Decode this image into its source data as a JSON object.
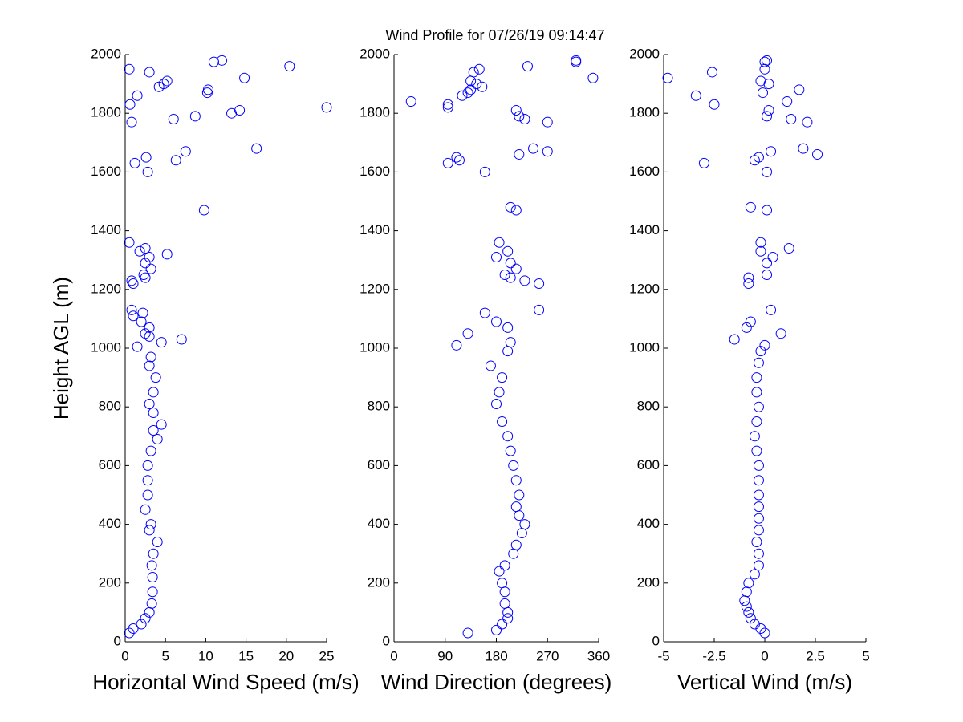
{
  "chart_data": [
    {
      "type": "scatter",
      "title": "Wind Profile for  07/26/19 09:14:47",
      "xlabel": "Horizontal Wind Speed (m/s)",
      "ylabel": "Height AGL (m)",
      "color": "#0000ff",
      "xlim": [
        0,
        25
      ],
      "xticks": [
        0,
        5,
        10,
        15,
        20,
        25
      ],
      "ylim": [
        0,
        2000
      ],
      "yticks": [
        0,
        200,
        400,
        600,
        800,
        1000,
        1200,
        1400,
        1600,
        1800,
        2000
      ],
      "x": [
        0.5,
        1,
        2,
        2.5,
        3,
        3.3,
        3.4,
        3.4,
        3.3,
        3.5,
        4,
        3,
        3.2,
        2.5,
        2.8,
        2.8,
        2.8,
        3.2,
        4,
        3.5,
        4.5,
        3.5,
        3,
        3.5,
        3.8,
        3,
        3.2,
        1.5,
        4.5,
        7,
        3,
        2.5,
        3,
        2,
        1,
        2.2,
        0.8,
        1,
        0.8,
        2.5,
        2.3,
        3.2,
        2.5,
        3,
        5.2,
        1.8,
        2.5,
        0.5,
        9.8,
        2.8,
        1.2,
        6.3,
        2.6,
        7.5,
        16.3,
        0.8,
        6,
        8.7,
        13.2,
        14.2,
        25,
        0.6,
        1.5,
        10.2,
        10.3,
        4.2,
        4.8,
        5.2,
        14.8,
        3,
        0.5,
        20.4,
        11,
        12
      ],
      "values": [
        30,
        45,
        60,
        80,
        100,
        130,
        170,
        220,
        260,
        300,
        340,
        380,
        400,
        450,
        500,
        550,
        600,
        650,
        690,
        720,
        740,
        780,
        810,
        850,
        900,
        940,
        970,
        1005,
        1020,
        1030,
        1040,
        1050,
        1070,
        1090,
        1110,
        1120,
        1130,
        1220,
        1230,
        1240,
        1250,
        1270,
        1290,
        1310,
        1320,
        1330,
        1340,
        1360,
        1470,
        1600,
        1630,
        1640,
        1650,
        1670,
        1680,
        1770,
        1780,
        1790,
        1800,
        1810,
        1820,
        1830,
        1860,
        1870,
        1880,
        1890,
        1900,
        1910,
        1920,
        1940,
        1950,
        1960,
        1975,
        1980
      ]
    },
    {
      "type": "scatter",
      "xlabel": "Wind Direction (degrees)",
      "color": "#0000ff",
      "xlim": [
        0,
        360
      ],
      "xticks": [
        0,
        90,
        180,
        270,
        360
      ],
      "ylim": [
        0,
        2000
      ],
      "yticks": [
        0,
        200,
        400,
        600,
        800,
        1000,
        1200,
        1400,
        1600,
        1800,
        2000
      ],
      "x": [
        130,
        180,
        190,
        200,
        200,
        195,
        195,
        190,
        185,
        195,
        210,
        215,
        225,
        230,
        220,
        215,
        220,
        215,
        210,
        205,
        200,
        190,
        180,
        185,
        190,
        170,
        200,
        110,
        205,
        130,
        200,
        180,
        160,
        230,
        205,
        195,
        215,
        205,
        180,
        200,
        185,
        255,
        255,
        205,
        215,
        160,
        95,
        115,
        110,
        220,
        270,
        245,
        270,
        230,
        220,
        215,
        30,
        95,
        95,
        120,
        130,
        135,
        155,
        145,
        135,
        350,
        140,
        150,
        235,
        320,
        320
      ],
      "values": [
        30,
        40,
        60,
        80,
        100,
        130,
        170,
        200,
        240,
        260,
        300,
        330,
        370,
        400,
        430,
        460,
        500,
        550,
        600,
        650,
        700,
        750,
        810,
        850,
        900,
        940,
        990,
        1010,
        1020,
        1050,
        1070,
        1090,
        1120,
        1230,
        1240,
        1250,
        1270,
        1290,
        1310,
        1330,
        1360,
        1220,
        1130,
        1480,
        1470,
        1600,
        1630,
        1640,
        1650,
        1660,
        1670,
        1680,
        1770,
        1780,
        1790,
        1810,
        1840,
        1820,
        1830,
        1860,
        1870,
        1880,
        1890,
        1900,
        1910,
        1920,
        1940,
        1950,
        1960,
        1975,
        1980
      ]
    },
    {
      "type": "scatter",
      "xlabel": "Vertical Wind (m/s)",
      "color": "#0000ff",
      "xlim": [
        -5,
        5
      ],
      "xticks": [
        -5,
        -2.5,
        0,
        2.5,
        5
      ],
      "ylim": [
        0,
        2000
      ],
      "yticks": [
        0,
        200,
        400,
        600,
        800,
        1000,
        1200,
        1400,
        1600,
        1800,
        2000
      ],
      "x": [
        0,
        -0.2,
        -0.5,
        -0.7,
        -0.8,
        -0.9,
        -1,
        -0.9,
        -0.8,
        -0.5,
        -0.3,
        -0.3,
        -0.4,
        -0.3,
        -0.3,
        -0.3,
        -0.3,
        -0.3,
        -0.3,
        -0.4,
        -0.5,
        -0.4,
        -0.3,
        -0.4,
        -0.4,
        -0.3,
        -0.2,
        0,
        0.8,
        -1.5,
        -0.9,
        -0.7,
        0.3,
        -0.8,
        -0.8,
        0.1,
        0.1,
        1.2,
        0.4,
        -0.2,
        -0.2,
        0.1,
        -0.7,
        0.1,
        -3,
        -0.3,
        0.3,
        2.6,
        1.9,
        -0.5,
        1.3,
        2.1,
        0.1,
        0.2,
        1.1,
        -2.5,
        -3.4,
        -0.1,
        1.7,
        0.2,
        -4.8,
        -0.2,
        -2.6,
        0,
        0,
        0.1
      ],
      "values": [
        30,
        45,
        60,
        80,
        100,
        120,
        140,
        170,
        200,
        230,
        260,
        300,
        340,
        380,
        420,
        460,
        500,
        550,
        600,
        650,
        700,
        750,
        800,
        850,
        900,
        950,
        990,
        1010,
        1050,
        1030,
        1070,
        1090,
        1130,
        1220,
        1240,
        1250,
        1290,
        1340,
        1310,
        1330,
        1360,
        1470,
        1480,
        1600,
        1630,
        1650,
        1670,
        1660,
        1680,
        1640,
        1780,
        1770,
        1790,
        1810,
        1840,
        1830,
        1860,
        1870,
        1880,
        1900,
        1920,
        1910,
        1940,
        1950,
        1975,
        1980
      ]
    }
  ]
}
